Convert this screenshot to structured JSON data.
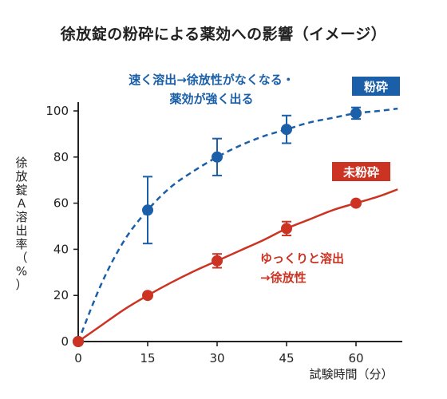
{
  "chart_data": {
    "type": "line",
    "title": "徐放錠の粉砕による薬効への影響（イメージ）",
    "xlabel": "試験時間（分）",
    "ylabel": [
      "徐",
      "放",
      "錠",
      "Ａ",
      "溶",
      "出",
      "率",
      "（",
      "%",
      "）"
    ],
    "xlim": [
      0,
      70
    ],
    "ylim": [
      0,
      100
    ],
    "xticks": [
      0,
      15,
      30,
      45,
      60
    ],
    "yticks": [
      0,
      20,
      40,
      60,
      80,
      100
    ],
    "series": [
      {
        "name": "粉砕",
        "color": "#1a5fa8",
        "style": "dashed",
        "x": [
          0,
          15,
          30,
          45,
          60
        ],
        "y": [
          0,
          57,
          80,
          92,
          99
        ],
        "err": [
          0,
          14.5,
          8,
          6,
          2.5
        ],
        "curve": {
          "x": [
            0,
            5,
            10,
            15,
            20,
            25,
            30,
            35,
            40,
            45,
            50,
            55,
            60,
            65,
            69
          ],
          "y": [
            0,
            25,
            44,
            57,
            67,
            74,
            80,
            85,
            89,
            92,
            95,
            97,
            99,
            100,
            101
          ]
        }
      },
      {
        "name": "未粉砕",
        "color": "#cc3322",
        "style": "solid",
        "x": [
          0,
          15,
          30,
          45,
          60
        ],
        "y": [
          0,
          20,
          35,
          49,
          60
        ],
        "err": [
          0,
          0,
          3,
          3,
          0
        ],
        "curve": {
          "x": [
            0,
            5,
            10,
            15,
            20,
            25,
            30,
            35,
            40,
            45,
            50,
            55,
            60,
            65,
            69
          ],
          "y": [
            0,
            7,
            14,
            20,
            25.5,
            30.5,
            35,
            39.5,
            44,
            49,
            53,
            57,
            60,
            63,
            66
          ]
        }
      }
    ],
    "annotations": {
      "fast": [
        "速く溶出→徐放性がなくなる・",
        "薬効が強く出る"
      ],
      "slow": [
        "ゆっくりと溶出",
        "→徐放性"
      ]
    }
  }
}
